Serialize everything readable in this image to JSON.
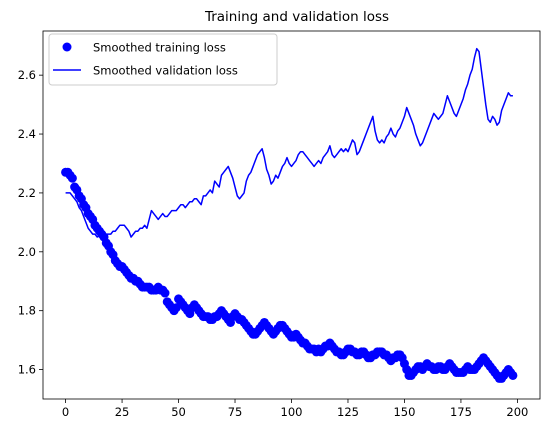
{
  "chart_data": {
    "type": "line",
    "title": "Training and validation loss",
    "xlabel": "",
    "ylabel": "",
    "xlim": [
      -10,
      210
    ],
    "ylim": [
      1.5,
      2.75
    ],
    "xticks": [
      0,
      25,
      50,
      75,
      100,
      125,
      150,
      175,
      200
    ],
    "yticks": [
      1.6,
      1.8,
      2.0,
      2.2,
      2.4,
      2.6
    ],
    "ytick_labels": [
      "1.6",
      "1.8",
      "2.0",
      "2.2",
      "2.4",
      "2.6"
    ],
    "grid": false,
    "legend_position": "top-left",
    "series": [
      {
        "name": "Smoothed training loss",
        "style": "markers",
        "color": "#0000ff",
        "x_start": 0,
        "x_step": 1,
        "values": [
          2.27,
          2.27,
          2.26,
          2.25,
          2.22,
          2.21,
          2.19,
          2.18,
          2.16,
          2.15,
          2.13,
          2.12,
          2.11,
          2.09,
          2.08,
          2.07,
          2.06,
          2.05,
          2.03,
          2.02,
          2.0,
          1.99,
          1.97,
          1.96,
          1.95,
          1.95,
          1.94,
          1.93,
          1.92,
          1.91,
          1.91,
          1.9,
          1.9,
          1.89,
          1.88,
          1.88,
          1.88,
          1.88,
          1.87,
          1.87,
          1.87,
          1.88,
          1.87,
          1.87,
          1.86,
          1.83,
          1.82,
          1.81,
          1.8,
          1.81,
          1.84,
          1.83,
          1.82,
          1.81,
          1.8,
          1.79,
          1.81,
          1.82,
          1.81,
          1.8,
          1.79,
          1.78,
          1.78,
          1.78,
          1.77,
          1.77,
          1.78,
          1.78,
          1.79,
          1.8,
          1.79,
          1.78,
          1.77,
          1.76,
          1.78,
          1.79,
          1.78,
          1.77,
          1.77,
          1.76,
          1.75,
          1.74,
          1.73,
          1.72,
          1.72,
          1.73,
          1.74,
          1.75,
          1.76,
          1.75,
          1.74,
          1.73,
          1.72,
          1.73,
          1.74,
          1.75,
          1.75,
          1.74,
          1.73,
          1.72,
          1.71,
          1.71,
          1.72,
          1.71,
          1.7,
          1.69,
          1.69,
          1.68,
          1.67,
          1.67,
          1.67,
          1.66,
          1.67,
          1.66,
          1.67,
          1.68,
          1.68,
          1.69,
          1.68,
          1.67,
          1.66,
          1.66,
          1.65,
          1.65,
          1.66,
          1.67,
          1.67,
          1.66,
          1.66,
          1.65,
          1.65,
          1.66,
          1.66,
          1.65,
          1.64,
          1.64,
          1.65,
          1.65,
          1.66,
          1.66,
          1.66,
          1.65,
          1.65,
          1.64,
          1.63,
          1.64,
          1.64,
          1.65,
          1.65,
          1.64,
          1.62,
          1.6,
          1.58,
          1.58,
          1.59,
          1.6,
          1.61,
          1.61,
          1.6,
          1.61,
          1.62,
          1.61,
          1.61,
          1.6,
          1.6,
          1.61,
          1.61,
          1.6,
          1.6,
          1.61,
          1.62,
          1.61,
          1.6,
          1.59,
          1.59,
          1.59,
          1.59,
          1.6,
          1.61,
          1.6,
          1.6,
          1.6,
          1.61,
          1.62,
          1.63,
          1.64,
          1.63,
          1.62,
          1.61,
          1.6,
          1.59,
          1.58,
          1.57,
          1.57,
          1.58,
          1.59,
          1.6,
          1.59,
          1.58
        ]
      },
      {
        "name": "Smoothed validation loss",
        "style": "line",
        "color": "#0000ff",
        "x_start": 0,
        "x_step": 1,
        "values": [
          2.2,
          2.2,
          2.2,
          2.19,
          2.18,
          2.17,
          2.15,
          2.14,
          2.12,
          2.1,
          2.08,
          2.07,
          2.06,
          2.06,
          2.05,
          2.06,
          2.05,
          2.06,
          2.06,
          2.06,
          2.06,
          2.07,
          2.07,
          2.08,
          2.09,
          2.09,
          2.09,
          2.08,
          2.07,
          2.05,
          2.06,
          2.07,
          2.07,
          2.08,
          2.08,
          2.09,
          2.08,
          2.11,
          2.14,
          2.13,
          2.12,
          2.11,
          2.12,
          2.13,
          2.12,
          2.12,
          2.13,
          2.14,
          2.14,
          2.14,
          2.15,
          2.16,
          2.16,
          2.15,
          2.16,
          2.17,
          2.17,
          2.18,
          2.18,
          2.17,
          2.16,
          2.19,
          2.19,
          2.2,
          2.21,
          2.2,
          2.24,
          2.23,
          2.22,
          2.26,
          2.27,
          2.28,
          2.29,
          2.27,
          2.25,
          2.22,
          2.19,
          2.18,
          2.19,
          2.2,
          2.24,
          2.26,
          2.27,
          2.29,
          2.31,
          2.33,
          2.34,
          2.35,
          2.32,
          2.28,
          2.26,
          2.23,
          2.24,
          2.26,
          2.25,
          2.27,
          2.29,
          2.3,
          2.32,
          2.3,
          2.29,
          2.3,
          2.31,
          2.33,
          2.34,
          2.34,
          2.33,
          2.32,
          2.31,
          2.3,
          2.29,
          2.3,
          2.31,
          2.3,
          2.32,
          2.33,
          2.34,
          2.36,
          2.33,
          2.32,
          2.33,
          2.34,
          2.35,
          2.34,
          2.35,
          2.34,
          2.36,
          2.38,
          2.37,
          2.33,
          2.34,
          2.36,
          2.38,
          2.4,
          2.42,
          2.44,
          2.46,
          2.41,
          2.38,
          2.37,
          2.38,
          2.37,
          2.39,
          2.4,
          2.42,
          2.4,
          2.39,
          2.41,
          2.42,
          2.44,
          2.46,
          2.49,
          2.47,
          2.45,
          2.43,
          2.4,
          2.38,
          2.36,
          2.37,
          2.39,
          2.41,
          2.43,
          2.45,
          2.47,
          2.46,
          2.45,
          2.46,
          2.47,
          2.5,
          2.53,
          2.51,
          2.49,
          2.47,
          2.46,
          2.48,
          2.5,
          2.52,
          2.55,
          2.57,
          2.6,
          2.62,
          2.66,
          2.69,
          2.68,
          2.62,
          2.56,
          2.5,
          2.45,
          2.44,
          2.46,
          2.45,
          2.43,
          2.44,
          2.48,
          2.5,
          2.52,
          2.54,
          2.53,
          2.53
        ]
      }
    ]
  }
}
